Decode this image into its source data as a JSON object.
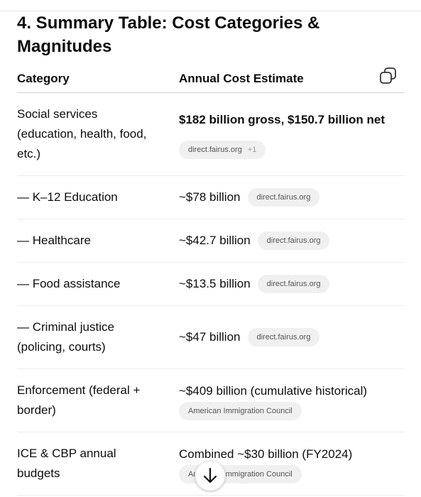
{
  "heading": "4. Summary Table: Cost Categories & Magnitudes",
  "table": {
    "headers": [
      "Category",
      "Annual Cost Estimate"
    ],
    "rows": [
      {
        "category": "Social services (education, health, food, etc.)",
        "estimate": "$182 billion gross, $150.7 billion net",
        "sources": [
          "direct.fairus.org"
        ],
        "more": "+1"
      },
      {
        "category": "— K–12 Education",
        "estimate": "~$78 billion",
        "sources": [
          "direct.fairus.org"
        ]
      },
      {
        "category": "— Healthcare",
        "estimate": "~$42.7 billion",
        "sources": [
          "direct.fairus.org"
        ]
      },
      {
        "category": "— Food assistance",
        "estimate": "~$13.5 billion",
        "sources": [
          "direct.fairus.org"
        ]
      },
      {
        "category": "— Criminal justice (policing, courts)",
        "estimate": "~$47 billion",
        "sources": [
          "direct.fairus.org"
        ]
      },
      {
        "category": "Enforcement (federal + border)",
        "estimate": "~$409 billion (cumulative historical)",
        "sources": [
          "American Immigration Council"
        ]
      },
      {
        "category": "ICE & CBP annual budgets",
        "estimate": "Combined ~$30 billion (FY2024)",
        "sources": [
          "American Immigration Council"
        ]
      }
    ]
  }
}
